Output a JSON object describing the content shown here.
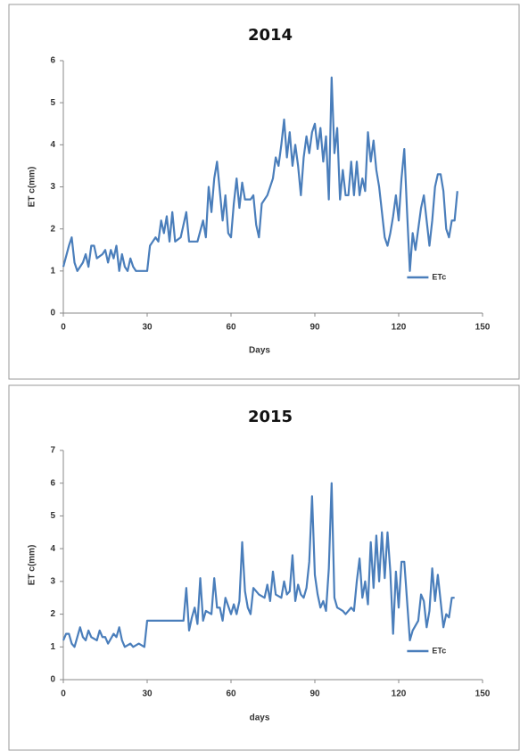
{
  "chart_data": [
    {
      "type": "line",
      "title": "2014",
      "x_label": "Days",
      "y_label": "ET c(mm)",
      "xlim": [
        0,
        150
      ],
      "xticks": [
        0,
        30,
        60,
        90,
        120,
        150
      ],
      "ylim": [
        0,
        6
      ],
      "yticks": [
        0,
        1,
        2,
        3,
        4,
        5,
        6
      ],
      "legend": "right",
      "x": [
        0,
        2,
        3,
        4,
        5,
        7,
        8,
        9,
        10,
        11,
        12,
        14,
        15,
        16,
        17,
        18,
        19,
        20,
        21,
        22,
        23,
        24,
        25,
        26,
        28,
        30,
        31,
        32,
        33,
        34,
        35,
        36,
        37,
        38,
        39,
        40,
        42,
        44,
        45,
        48,
        50,
        51,
        52,
        53,
        54,
        55,
        56,
        57,
        58,
        59,
        60,
        61,
        62,
        63,
        64,
        65,
        67,
        68,
        69,
        70,
        71,
        73,
        75,
        76,
        77,
        78,
        79,
        80,
        81,
        82,
        83,
        84,
        85,
        86,
        87,
        88,
        89,
        90,
        91,
        92,
        93,
        94,
        95,
        96,
        97,
        98,
        99,
        100,
        101,
        102,
        103,
        104,
        105,
        106,
        107,
        108,
        109,
        110,
        111,
        112,
        113,
        114,
        115,
        116,
        117,
        118,
        119,
        120,
        121,
        122,
        123,
        124,
        125,
        126,
        127,
        128,
        129,
        130,
        131,
        132,
        133,
        134,
        135,
        136,
        137,
        138,
        139,
        140,
        141
      ],
      "series": [
        {
          "name": "ETc",
          "color": "#4a7ebb",
          "values": [
            1.1,
            1.6,
            1.8,
            1.2,
            1.0,
            1.2,
            1.4,
            1.1,
            1.6,
            1.6,
            1.3,
            1.4,
            1.5,
            1.2,
            1.5,
            1.3,
            1.6,
            1.0,
            1.4,
            1.1,
            1.0,
            1.3,
            1.1,
            1.0,
            1.0,
            1.0,
            1.6,
            1.7,
            1.8,
            1.7,
            2.2,
            1.9,
            2.3,
            1.7,
            2.4,
            1.7,
            1.8,
            2.4,
            1.7,
            1.7,
            2.2,
            1.8,
            3.0,
            2.4,
            3.2,
            3.6,
            2.9,
            2.2,
            2.8,
            1.9,
            1.8,
            2.6,
            3.2,
            2.5,
            3.1,
            2.7,
            2.7,
            2.8,
            2.1,
            1.8,
            2.6,
            2.8,
            3.2,
            3.7,
            3.5,
            4.0,
            4.6,
            3.7,
            4.3,
            3.5,
            4.0,
            3.5,
            2.8,
            3.7,
            4.2,
            3.8,
            4.3,
            4.5,
            3.9,
            4.4,
            3.6,
            4.2,
            2.7,
            5.6,
            3.8,
            4.4,
            2.7,
            3.4,
            2.8,
            2.8,
            3.6,
            2.8,
            3.6,
            2.8,
            3.2,
            2.9,
            4.3,
            3.6,
            4.1,
            3.4,
            3.0,
            2.4,
            1.8,
            1.6,
            1.9,
            2.3,
            2.8,
            2.2,
            3.2,
            3.9,
            2.4,
            1.0,
            1.9,
            1.5,
            2.0,
            2.5,
            2.8,
            2.2,
            1.6,
            2.2,
            3.0,
            3.3,
            3.3,
            2.9,
            2.0,
            1.8,
            2.2,
            2.2,
            2.9
          ]
        }
      ]
    },
    {
      "type": "line",
      "title": "2015",
      "x_label": "days",
      "y_label": "ET c(mm)",
      "xlim": [
        0,
        150
      ],
      "xticks": [
        0,
        30,
        60,
        90,
        120,
        150
      ],
      "ylim": [
        0,
        7
      ],
      "yticks": [
        0,
        1,
        2,
        3,
        4,
        5,
        6,
        7
      ],
      "legend": "right",
      "x": [
        0,
        1,
        2,
        3,
        4,
        5,
        6,
        7,
        8,
        9,
        10,
        12,
        13,
        14,
        15,
        16,
        18,
        19,
        20,
        21,
        22,
        24,
        25,
        27,
        29,
        30,
        35,
        40,
        43,
        44,
        45,
        46,
        47,
        48,
        49,
        50,
        51,
        53,
        54,
        55,
        56,
        57,
        58,
        60,
        61,
        62,
        63,
        64,
        65,
        66,
        67,
        68,
        70,
        72,
        73,
        74,
        75,
        76,
        78,
        79,
        80,
        81,
        82,
        83,
        84,
        85,
        86,
        87,
        88,
        89,
        90,
        91,
        92,
        93,
        94,
        95,
        96,
        97,
        98,
        100,
        101,
        103,
        104,
        105,
        106,
        107,
        108,
        109,
        110,
        111,
        112,
        113,
        114,
        115,
        116,
        117,
        118,
        119,
        120,
        121,
        122,
        123,
        124,
        125,
        127,
        128,
        129,
        130,
        131,
        132,
        133,
        134,
        135,
        136,
        137,
        138,
        139,
        140
      ],
      "series": [
        {
          "name": "ETc",
          "color": "#4a7ebb",
          "values": [
            1.2,
            1.4,
            1.4,
            1.1,
            1.0,
            1.3,
            1.6,
            1.3,
            1.2,
            1.5,
            1.3,
            1.2,
            1.5,
            1.3,
            1.3,
            1.1,
            1.4,
            1.3,
            1.6,
            1.2,
            1.0,
            1.1,
            1.0,
            1.1,
            1.0,
            1.8,
            1.8,
            1.8,
            1.8,
            2.8,
            1.5,
            1.9,
            2.2,
            1.7,
            3.1,
            1.8,
            2.1,
            2.0,
            3.1,
            2.2,
            2.2,
            1.8,
            2.5,
            2.0,
            2.3,
            2.0,
            2.4,
            4.2,
            2.7,
            2.2,
            2.0,
            2.8,
            2.6,
            2.5,
            2.9,
            2.4,
            3.3,
            2.6,
            2.5,
            3.0,
            2.6,
            2.7,
            3.8,
            2.4,
            2.9,
            2.6,
            2.5,
            2.8,
            3.6,
            5.6,
            3.2,
            2.6,
            2.2,
            2.4,
            2.1,
            3.4,
            6.0,
            2.5,
            2.2,
            2.1,
            2.0,
            2.2,
            2.1,
            3.0,
            3.7,
            2.5,
            3.0,
            2.3,
            4.2,
            2.8,
            4.4,
            3.0,
            4.5,
            3.1,
            4.5,
            3.3,
            1.4,
            3.3,
            2.2,
            3.6,
            3.6,
            2.4,
            1.2,
            1.5,
            1.8,
            2.6,
            2.4,
            1.6,
            2.1,
            3.4,
            2.4,
            3.2,
            2.4,
            1.6,
            2.0,
            1.9,
            2.5,
            2.5
          ]
        }
      ]
    }
  ]
}
